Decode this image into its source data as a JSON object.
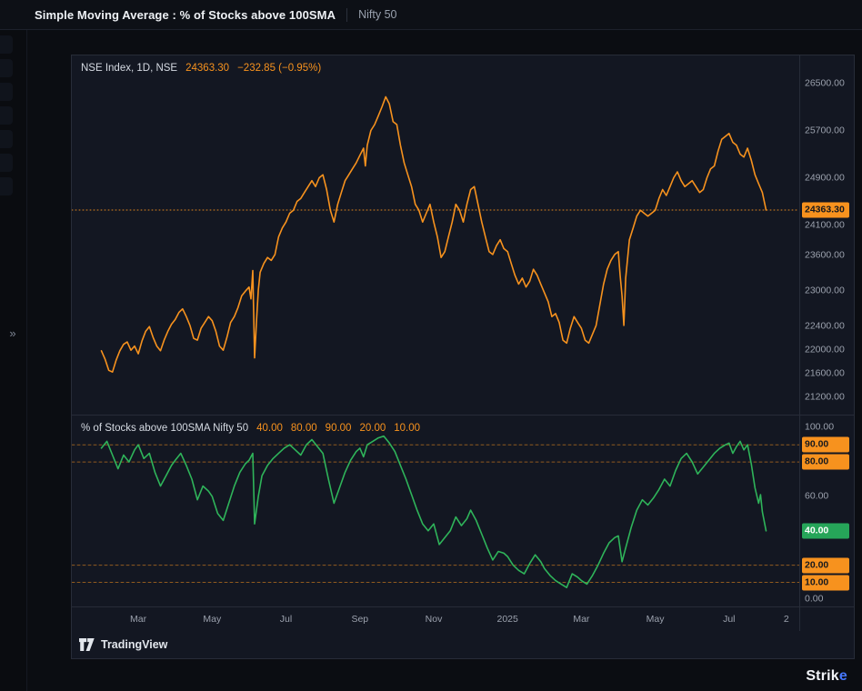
{
  "header": {
    "title": "Simple Moving Average : % of Stocks above 100SMA",
    "subtitle": "Nifty 50"
  },
  "sidebar": {
    "expand_icon": "»"
  },
  "attribution": {
    "label": "TradingView"
  },
  "footer": {
    "brand_prefix": "Strik",
    "brand_suffix": "e"
  },
  "colors": {
    "orange": "#f7921e",
    "green": "#2fb45a",
    "badge_green": "#26a559",
    "chart_bg": "#131722",
    "axis_text": "#9ba1ad"
  },
  "chart_data": [
    {
      "type": "line",
      "title": "NSE Index, 1D, NSE",
      "legend_value": "24363.30",
      "legend_change": "−232.85 (−0.95%)",
      "color": "#f7921e",
      "x_unit": "months since Feb 2024",
      "x_range": [
        -0.8,
        18.9
      ],
      "ylim": [
        20900,
        26980
      ],
      "y_ticks": [
        26500,
        25700,
        24900,
        24100,
        23600,
        23000,
        22400,
        22000,
        21600,
        21200
      ],
      "last_value": 24363.3,
      "x_ticks": [
        {
          "t": 1,
          "label": "Mar"
        },
        {
          "t": 3,
          "label": "May"
        },
        {
          "t": 5,
          "label": "Jul"
        },
        {
          "t": 7,
          "label": "Sep"
        },
        {
          "t": 9,
          "label": "Nov"
        },
        {
          "t": 11,
          "label": "2025"
        },
        {
          "t": 13,
          "label": "Mar"
        },
        {
          "t": 15,
          "label": "May"
        },
        {
          "t": 17,
          "label": "Jul"
        },
        {
          "t": 18.55,
          "label": "2"
        }
      ],
      "points": [
        [
          0.0,
          21980
        ],
        [
          0.1,
          21840
        ],
        [
          0.2,
          21650
        ],
        [
          0.3,
          21620
        ],
        [
          0.4,
          21820
        ],
        [
          0.5,
          21980
        ],
        [
          0.6,
          22090
        ],
        [
          0.7,
          22130
        ],
        [
          0.8,
          21990
        ],
        [
          0.9,
          22060
        ],
        [
          1.0,
          21930
        ],
        [
          1.1,
          22150
        ],
        [
          1.2,
          22310
        ],
        [
          1.3,
          22390
        ],
        [
          1.4,
          22210
        ],
        [
          1.5,
          22060
        ],
        [
          1.6,
          21980
        ],
        [
          1.7,
          22160
        ],
        [
          1.8,
          22310
        ],
        [
          1.9,
          22430
        ],
        [
          2.0,
          22510
        ],
        [
          2.1,
          22630
        ],
        [
          2.2,
          22690
        ],
        [
          2.3,
          22560
        ],
        [
          2.4,
          22410
        ],
        [
          2.5,
          22190
        ],
        [
          2.6,
          22160
        ],
        [
          2.7,
          22360
        ],
        [
          2.8,
          22460
        ],
        [
          2.9,
          22560
        ],
        [
          3.0,
          22490
        ],
        [
          3.1,
          22310
        ],
        [
          3.2,
          22060
        ],
        [
          3.3,
          21990
        ],
        [
          3.4,
          22210
        ],
        [
          3.5,
          22460
        ],
        [
          3.6,
          22560
        ],
        [
          3.7,
          22710
        ],
        [
          3.8,
          22910
        ],
        [
          3.9,
          22990
        ],
        [
          4.0,
          23060
        ],
        [
          4.05,
          22860
        ],
        [
          4.1,
          23340
        ],
        [
          4.15,
          21860
        ],
        [
          4.2,
          22460
        ],
        [
          4.25,
          23010
        ],
        [
          4.3,
          23310
        ],
        [
          4.4,
          23460
        ],
        [
          4.5,
          23560
        ],
        [
          4.6,
          23510
        ],
        [
          4.7,
          23610
        ],
        [
          4.8,
          23910
        ],
        [
          4.9,
          24060
        ],
        [
          5.0,
          24160
        ],
        [
          5.1,
          24310
        ],
        [
          5.2,
          24360
        ],
        [
          5.3,
          24510
        ],
        [
          5.4,
          24560
        ],
        [
          5.5,
          24660
        ],
        [
          5.6,
          24760
        ],
        [
          5.7,
          24860
        ],
        [
          5.8,
          24760
        ],
        [
          5.9,
          24910
        ],
        [
          6.0,
          24960
        ],
        [
          6.1,
          24710
        ],
        [
          6.2,
          24360
        ],
        [
          6.3,
          24160
        ],
        [
          6.4,
          24460
        ],
        [
          6.5,
          24660
        ],
        [
          6.6,
          24860
        ],
        [
          6.7,
          24960
        ],
        [
          6.8,
          25060
        ],
        [
          6.9,
          25160
        ],
        [
          7.0,
          25290
        ],
        [
          7.1,
          25410
        ],
        [
          7.15,
          25110
        ],
        [
          7.2,
          25460
        ],
        [
          7.3,
          25710
        ],
        [
          7.4,
          25810
        ],
        [
          7.5,
          25960
        ],
        [
          7.6,
          26110
        ],
        [
          7.7,
          26280
        ],
        [
          7.8,
          26160
        ],
        [
          7.9,
          25860
        ],
        [
          8.0,
          25810
        ],
        [
          8.1,
          25460
        ],
        [
          8.2,
          25160
        ],
        [
          8.3,
          24960
        ],
        [
          8.4,
          24760
        ],
        [
          8.5,
          24460
        ],
        [
          8.6,
          24360
        ],
        [
          8.7,
          24160
        ],
        [
          8.8,
          24310
        ],
        [
          8.9,
          24460
        ],
        [
          9.0,
          24160
        ],
        [
          9.1,
          23910
        ],
        [
          9.2,
          23560
        ],
        [
          9.3,
          23660
        ],
        [
          9.4,
          23910
        ],
        [
          9.5,
          24160
        ],
        [
          9.6,
          24460
        ],
        [
          9.7,
          24360
        ],
        [
          9.8,
          24160
        ],
        [
          9.9,
          24460
        ],
        [
          10.0,
          24710
        ],
        [
          10.1,
          24760
        ],
        [
          10.2,
          24460
        ],
        [
          10.3,
          24160
        ],
        [
          10.4,
          23910
        ],
        [
          10.5,
          23660
        ],
        [
          10.6,
          23610
        ],
        [
          10.7,
          23760
        ],
        [
          10.8,
          23860
        ],
        [
          10.9,
          23710
        ],
        [
          11.0,
          23660
        ],
        [
          11.1,
          23460
        ],
        [
          11.2,
          23260
        ],
        [
          11.3,
          23110
        ],
        [
          11.4,
          23210
        ],
        [
          11.5,
          23060
        ],
        [
          11.6,
          23160
        ],
        [
          11.7,
          23360
        ],
        [
          11.8,
          23260
        ],
        [
          11.9,
          23110
        ],
        [
          12.0,
          22960
        ],
        [
          12.1,
          22810
        ],
        [
          12.2,
          22560
        ],
        [
          12.3,
          22610
        ],
        [
          12.4,
          22460
        ],
        [
          12.5,
          22160
        ],
        [
          12.6,
          22110
        ],
        [
          12.7,
          22360
        ],
        [
          12.8,
          22560
        ],
        [
          12.9,
          22460
        ],
        [
          13.0,
          22360
        ],
        [
          13.1,
          22160
        ],
        [
          13.2,
          22110
        ],
        [
          13.3,
          22260
        ],
        [
          13.4,
          22410
        ],
        [
          13.5,
          22760
        ],
        [
          13.6,
          23110
        ],
        [
          13.7,
          23360
        ],
        [
          13.8,
          23510
        ],
        [
          13.9,
          23610
        ],
        [
          14.0,
          23660
        ],
        [
          14.05,
          23260
        ],
        [
          14.1,
          22910
        ],
        [
          14.15,
          22410
        ],
        [
          14.2,
          23210
        ],
        [
          14.3,
          23860
        ],
        [
          14.4,
          24060
        ],
        [
          14.5,
          24260
        ],
        [
          14.6,
          24360
        ],
        [
          14.7,
          24310
        ],
        [
          14.8,
          24260
        ],
        [
          14.9,
          24310
        ],
        [
          15.0,
          24360
        ],
        [
          15.1,
          24560
        ],
        [
          15.2,
          24710
        ],
        [
          15.3,
          24610
        ],
        [
          15.4,
          24760
        ],
        [
          15.5,
          24910
        ],
        [
          15.6,
          25010
        ],
        [
          15.7,
          24860
        ],
        [
          15.8,
          24760
        ],
        [
          15.9,
          24810
        ],
        [
          16.0,
          24860
        ],
        [
          16.1,
          24760
        ],
        [
          16.2,
          24660
        ],
        [
          16.3,
          24710
        ],
        [
          16.4,
          24910
        ],
        [
          16.5,
          25060
        ],
        [
          16.6,
          25110
        ],
        [
          16.7,
          25360
        ],
        [
          16.8,
          25560
        ],
        [
          16.9,
          25610
        ],
        [
          17.0,
          25660
        ],
        [
          17.1,
          25510
        ],
        [
          17.2,
          25460
        ],
        [
          17.3,
          25310
        ],
        [
          17.4,
          25260
        ],
        [
          17.5,
          25410
        ],
        [
          17.6,
          25210
        ],
        [
          17.7,
          24960
        ],
        [
          17.8,
          24810
        ],
        [
          17.9,
          24660
        ],
        [
          18.0,
          24363.3
        ]
      ]
    },
    {
      "type": "line",
      "title": "% of Stocks above 100SMA Nifty 50",
      "legend_values": [
        "40.00",
        "80.00",
        "90.00",
        "20.00",
        "10.00"
      ],
      "color": "#2fb45a",
      "level_color": "#f7921e",
      "level_lines": [
        90,
        80,
        20,
        10
      ],
      "ylim": [
        -4,
        107
      ],
      "y_ticks": [
        100,
        60,
        0
      ],
      "last_value": 40.0,
      "points": [
        [
          0.0,
          88
        ],
        [
          0.15,
          92
        ],
        [
          0.3,
          84
        ],
        [
          0.45,
          76
        ],
        [
          0.6,
          84
        ],
        [
          0.75,
          80
        ],
        [
          0.9,
          87
        ],
        [
          1.0,
          90
        ],
        [
          1.15,
          82
        ],
        [
          1.3,
          85
        ],
        [
          1.45,
          74
        ],
        [
          1.6,
          66
        ],
        [
          1.75,
          72
        ],
        [
          1.9,
          78
        ],
        [
          2.0,
          81
        ],
        [
          2.15,
          85
        ],
        [
          2.3,
          78
        ],
        [
          2.45,
          70
        ],
        [
          2.6,
          58
        ],
        [
          2.75,
          66
        ],
        [
          2.9,
          63
        ],
        [
          3.0,
          60
        ],
        [
          3.15,
          50
        ],
        [
          3.3,
          46
        ],
        [
          3.45,
          56
        ],
        [
          3.6,
          66
        ],
        [
          3.75,
          74
        ],
        [
          3.9,
          79
        ],
        [
          4.0,
          81
        ],
        [
          4.1,
          85
        ],
        [
          4.15,
          44
        ],
        [
          4.25,
          60
        ],
        [
          4.35,
          72
        ],
        [
          4.5,
          78
        ],
        [
          4.65,
          82
        ],
        [
          4.8,
          85
        ],
        [
          4.95,
          88
        ],
        [
          5.1,
          90
        ],
        [
          5.25,
          87
        ],
        [
          5.4,
          84
        ],
        [
          5.55,
          90
        ],
        [
          5.7,
          93
        ],
        [
          5.85,
          89
        ],
        [
          6.0,
          85
        ],
        [
          6.15,
          70
        ],
        [
          6.3,
          56
        ],
        [
          6.45,
          65
        ],
        [
          6.6,
          74
        ],
        [
          6.75,
          81
        ],
        [
          6.9,
          86
        ],
        [
          7.0,
          88
        ],
        [
          7.1,
          83
        ],
        [
          7.2,
          90
        ],
        [
          7.35,
          92
        ],
        [
          7.5,
          94
        ],
        [
          7.65,
          95
        ],
        [
          7.8,
          91
        ],
        [
          7.95,
          86
        ],
        [
          8.1,
          78
        ],
        [
          8.25,
          70
        ],
        [
          8.4,
          61
        ],
        [
          8.55,
          52
        ],
        [
          8.7,
          44
        ],
        [
          8.85,
          40
        ],
        [
          9.0,
          44
        ],
        [
          9.15,
          32
        ],
        [
          9.3,
          36
        ],
        [
          9.45,
          40
        ],
        [
          9.6,
          48
        ],
        [
          9.75,
          43
        ],
        [
          9.9,
          47
        ],
        [
          10.0,
          52
        ],
        [
          10.15,
          46
        ],
        [
          10.3,
          38
        ],
        [
          10.45,
          30
        ],
        [
          10.6,
          23
        ],
        [
          10.75,
          28
        ],
        [
          10.9,
          27
        ],
        [
          11.0,
          25
        ],
        [
          11.15,
          20
        ],
        [
          11.3,
          17
        ],
        [
          11.45,
          15
        ],
        [
          11.6,
          21
        ],
        [
          11.75,
          26
        ],
        [
          11.9,
          22
        ],
        [
          12.0,
          18
        ],
        [
          12.15,
          14
        ],
        [
          12.3,
          11
        ],
        [
          12.45,
          9
        ],
        [
          12.6,
          7
        ],
        [
          12.75,
          15
        ],
        [
          12.9,
          13
        ],
        [
          13.0,
          11
        ],
        [
          13.15,
          9
        ],
        [
          13.3,
          14
        ],
        [
          13.45,
          20
        ],
        [
          13.6,
          27
        ],
        [
          13.75,
          33
        ],
        [
          13.9,
          36
        ],
        [
          14.0,
          37
        ],
        [
          14.1,
          22
        ],
        [
          14.2,
          30
        ],
        [
          14.35,
          42
        ],
        [
          14.5,
          52
        ],
        [
          14.65,
          58
        ],
        [
          14.8,
          55
        ],
        [
          14.95,
          59
        ],
        [
          15.1,
          64
        ],
        [
          15.25,
          70
        ],
        [
          15.4,
          66
        ],
        [
          15.55,
          75
        ],
        [
          15.7,
          82
        ],
        [
          15.85,
          85
        ],
        [
          16.0,
          80
        ],
        [
          16.15,
          73
        ],
        [
          16.3,
          77
        ],
        [
          16.45,
          81
        ],
        [
          16.6,
          85
        ],
        [
          16.75,
          88
        ],
        [
          16.9,
          90
        ],
        [
          17.0,
          91
        ],
        [
          17.1,
          85
        ],
        [
          17.2,
          89
        ],
        [
          17.3,
          92
        ],
        [
          17.4,
          87
        ],
        [
          17.5,
          90
        ],
        [
          17.6,
          79
        ],
        [
          17.7,
          65
        ],
        [
          17.8,
          56
        ],
        [
          17.85,
          61
        ],
        [
          17.9,
          51
        ],
        [
          18.0,
          40
        ]
      ]
    }
  ]
}
